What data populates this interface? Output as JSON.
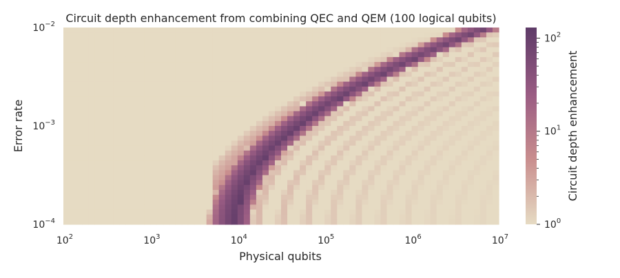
{
  "chart_data": {
    "type": "heatmap",
    "title": "Circuit depth enhancement from combining QEC and QEM (100 logical qubits)",
    "xlabel": "Physical qubits",
    "ylabel": "Error rate",
    "x_scale": "log",
    "y_scale": "log",
    "xlim": [
      100,
      10000000
    ],
    "ylim": [
      0.0001,
      0.01
    ],
    "x_ticks": [
      {
        "value": 100,
        "base": "10",
        "exp": "2"
      },
      {
        "value": 1000,
        "base": "10",
        "exp": "3"
      },
      {
        "value": 10000,
        "base": "10",
        "exp": "4"
      },
      {
        "value": 100000,
        "base": "10",
        "exp": "5"
      },
      {
        "value": 1000000,
        "base": "10",
        "exp": "6"
      },
      {
        "value": 10000000,
        "base": "10",
        "exp": "7"
      }
    ],
    "y_ticks": [
      {
        "value": 0.0001,
        "base": "10",
        "exp": "−4"
      },
      {
        "value": 0.001,
        "base": "10",
        "exp": "−3"
      },
      {
        "value": 0.01,
        "base": "10",
        "exp": "−2"
      }
    ],
    "colorbar": {
      "label": "Circuit depth enhancement",
      "scale": "log",
      "range": [
        1,
        130
      ],
      "ticks": [
        {
          "value": 1,
          "base": "10",
          "exp": "0"
        },
        {
          "value": 10,
          "base": "10",
          "exp": "1"
        },
        {
          "value": 100,
          "base": "10",
          "exp": "2"
        }
      ],
      "colors": [
        "#e6dbc3",
        "#c98e8e",
        "#9a5c83",
        "#5e3b68"
      ]
    },
    "grid": false,
    "features": {
      "primary_band_peak": 120,
      "first_band_onset_x": 5000,
      "frontier_x_at_min_error": 10000,
      "frontier_x_at_max_error": 8000000,
      "ridge_error_slope_decades": 2,
      "background_value": 1
    }
  }
}
